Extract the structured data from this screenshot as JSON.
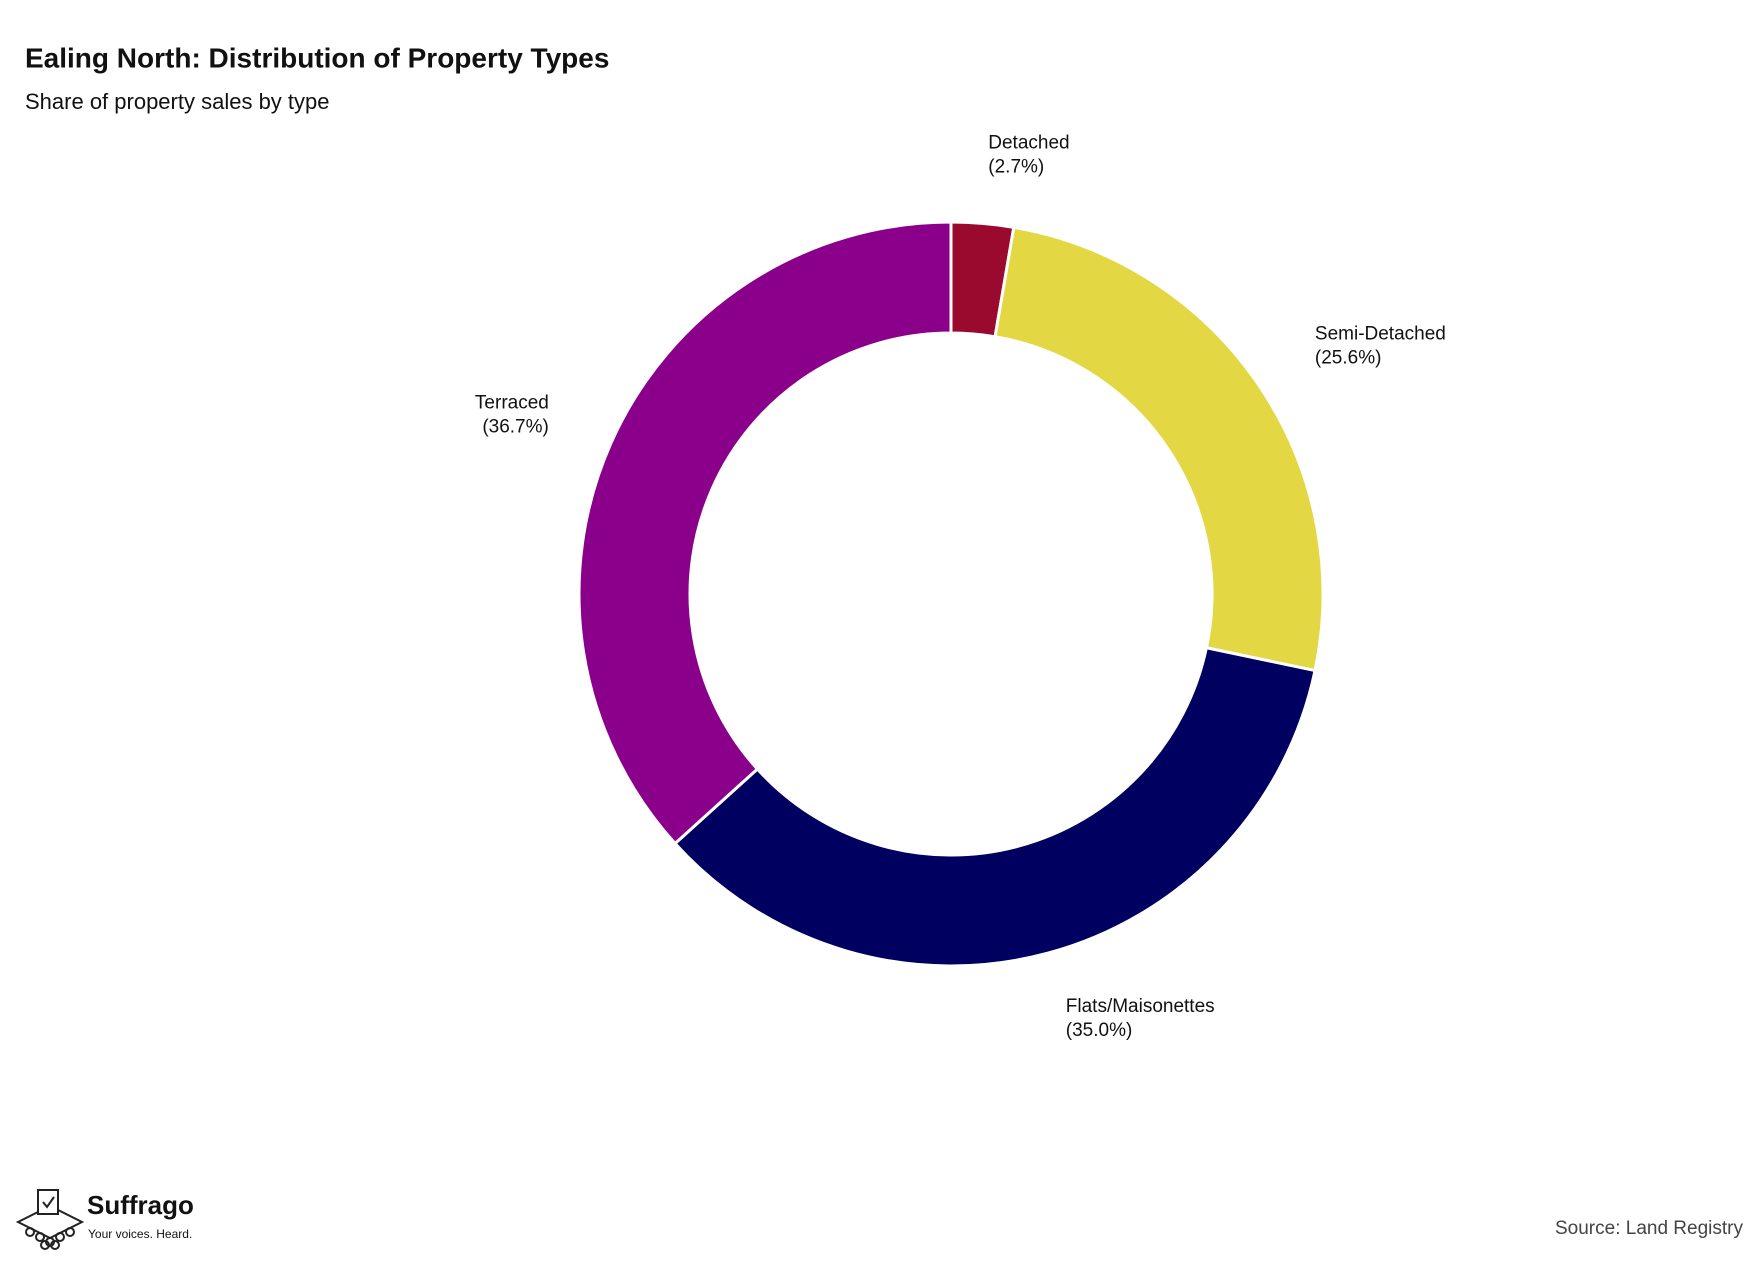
{
  "chart_data": {
    "type": "donut",
    "title": "Ealing North: Distribution of Property Types",
    "subtitle": "Share of property sales by type",
    "categories": [
      "Detached",
      "Semi-Detached",
      "Flats/Maisonettes",
      "Terraced"
    ],
    "values": [
      2.7,
      25.6,
      35.0,
      36.7
    ],
    "value_labels": [
      "(2.7%)",
      "(25.6%)",
      "(35.0%)",
      "(36.7%)"
    ],
    "colors": [
      "#990a2e",
      "#e3d844",
      "#000060",
      "#8b008b"
    ]
  },
  "footer": {
    "brand": "Suffrago",
    "tagline": "Your voices. Heard.",
    "source": "Source: Land Registry"
  }
}
